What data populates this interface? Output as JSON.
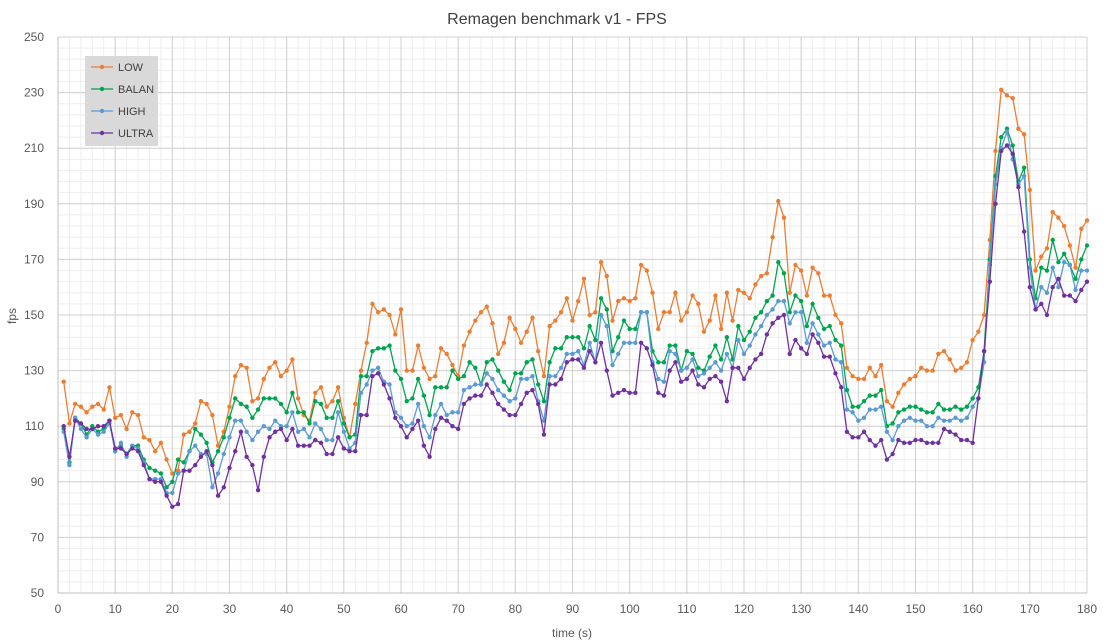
{
  "chart_data": {
    "type": "line",
    "title": "Remagen benchmark v1 - FPS",
    "xlabel": "time (s)",
    "ylabel": "fps",
    "xlim": [
      0,
      180
    ],
    "ylim": [
      50,
      250
    ],
    "x_ticks": [
      0,
      10,
      20,
      30,
      40,
      50,
      60,
      70,
      80,
      90,
      100,
      110,
      120,
      130,
      140,
      150,
      160,
      170,
      180
    ],
    "y_ticks": [
      50,
      70,
      90,
      110,
      130,
      150,
      170,
      190,
      210,
      230,
      250
    ],
    "x_minor_step": 2,
    "y_minor_step": 4,
    "grid": true,
    "legend_position": "top-left",
    "series": [
      {
        "name": "LOW",
        "color": "#ED7D31",
        "values": [
          126,
          111,
          118,
          117,
          115,
          117,
          118,
          116,
          124,
          113,
          114,
          109,
          115,
          114,
          106,
          105,
          101,
          104,
          98,
          93,
          94,
          107,
          108,
          111,
          119,
          118,
          114,
          103,
          108,
          117,
          128,
          132,
          131,
          119,
          120,
          127,
          131,
          133,
          128,
          130,
          134,
          120,
          114,
          112,
          122,
          124,
          117,
          119,
          124,
          113,
          106,
          118,
          130,
          140,
          154,
          151,
          152,
          150,
          143,
          152,
          130,
          130,
          139,
          131,
          127,
          128,
          138,
          136,
          132,
          128,
          139,
          144,
          148,
          151,
          153,
          147,
          136,
          140,
          149,
          145,
          140,
          144,
          149,
          137,
          128,
          146,
          148,
          151,
          156,
          148,
          155,
          163,
          150,
          151,
          169,
          164,
          148,
          155,
          156,
          155,
          156,
          168,
          166,
          158,
          145,
          151,
          151,
          158,
          148,
          151,
          157,
          154,
          144,
          148,
          157,
          145,
          158,
          148,
          159,
          158,
          156,
          161,
          164,
          165,
          178,
          191,
          185,
          158,
          168,
          166,
          157,
          167,
          165,
          157,
          157,
          150,
          147,
          131,
          128,
          127,
          127,
          131,
          128,
          132,
          119,
          117,
          122,
          125,
          127,
          128,
          131,
          130,
          130,
          136,
          137,
          134,
          130,
          131,
          133,
          141,
          144,
          150,
          177,
          209,
          231,
          229,
          228,
          217,
          215,
          195,
          166,
          171,
          174,
          187,
          185,
          182,
          175,
          167,
          181,
          184
        ]
      },
      {
        "name": "BALAN",
        "color": "#00A550",
        "values": [
          109,
          97,
          113,
          111,
          107,
          110,
          108,
          109,
          112,
          101,
          103,
          100,
          103,
          103,
          98,
          95,
          94,
          93,
          88,
          90,
          98,
          97,
          101,
          109,
          107,
          104,
          97,
          101,
          106,
          113,
          120,
          118,
          117,
          113,
          116,
          120,
          120,
          120,
          118,
          115,
          122,
          115,
          115,
          111,
          119,
          118,
          113,
          113,
          119,
          111,
          106,
          107,
          128,
          128,
          137,
          138,
          138,
          139,
          130,
          127,
          119,
          120,
          127,
          121,
          114,
          124,
          124,
          124,
          130,
          127,
          128,
          133,
          131,
          125,
          133,
          134,
          130,
          126,
          123,
          129,
          129,
          133,
          134,
          125,
          119,
          133,
          138,
          138,
          142,
          142,
          142,
          138,
          146,
          141,
          156,
          152,
          137,
          142,
          148,
          145,
          145,
          151,
          151,
          137,
          133,
          133,
          139,
          139,
          130,
          137,
          136,
          131,
          130,
          135,
          139,
          134,
          142,
          134,
          146,
          141,
          144,
          149,
          151,
          155,
          157,
          169,
          165,
          151,
          157,
          155,
          146,
          154,
          149,
          145,
          146,
          141,
          139,
          123,
          117,
          117,
          119,
          121,
          121,
          123,
          110,
          111,
          115,
          116,
          117,
          117,
          116,
          115,
          115,
          118,
          116,
          116,
          117,
          116,
          117,
          120,
          124,
          137,
          170,
          200,
          214,
          217,
          211,
          198,
          203,
          170,
          156,
          167,
          166,
          177,
          169,
          172,
          168,
          163,
          170,
          175
        ]
      },
      {
        "name": "HIGH",
        "color": "#5B9BD5",
        "values": [
          108,
          96,
          113,
          109,
          106,
          109,
          107,
          108,
          111,
          101,
          104,
          99,
          103,
          102,
          97,
          91,
          91,
          91,
          86,
          86,
          93,
          94,
          101,
          103,
          100,
          100,
          88,
          93,
          100,
          106,
          112,
          112,
          108,
          105,
          108,
          110,
          109,
          112,
          110,
          110,
          115,
          108,
          109,
          106,
          111,
          109,
          105,
          105,
          115,
          108,
          102,
          104,
          122,
          125,
          130,
          131,
          126,
          125,
          115,
          113,
          110,
          111,
          118,
          110,
          106,
          114,
          118,
          114,
          115,
          115,
          123,
          124,
          125,
          125,
          129,
          127,
          123,
          121,
          119,
          120,
          127,
          127,
          128,
          119,
          112,
          128,
          128,
          131,
          136,
          136,
          137,
          132,
          140,
          133,
          150,
          146,
          132,
          136,
          140,
          140,
          140,
          151,
          151,
          133,
          127,
          126,
          137,
          136,
          130,
          131,
          134,
          128,
          129,
          131,
          133,
          130,
          136,
          131,
          141,
          136,
          139,
          143,
          146,
          150,
          152,
          155,
          155,
          147,
          151,
          151,
          140,
          147,
          143,
          139,
          140,
          134,
          133,
          116,
          115,
          112,
          113,
          116,
          116,
          117,
          108,
          105,
          110,
          112,
          113,
          112,
          112,
          110,
          110,
          113,
          112,
          112,
          113,
          112,
          113,
          117,
          120,
          133,
          168,
          197,
          210,
          216,
          206,
          197,
          200,
          167,
          152,
          160,
          158,
          167,
          160,
          169,
          168,
          159,
          166,
          166
        ]
      },
      {
        "name": "ULTRA",
        "color": "#7030A0",
        "values": [
          110,
          99,
          112,
          111,
          109,
          109,
          110,
          110,
          112,
          102,
          102,
          100,
          102,
          101,
          96,
          91,
          90,
          90,
          85,
          81,
          82,
          94,
          94,
          96,
          99,
          101,
          96,
          85,
          88,
          95,
          101,
          108,
          99,
          96,
          87,
          99,
          106,
          108,
          109,
          105,
          109,
          103,
          103,
          103,
          105,
          104,
          100,
          100,
          106,
          102,
          101,
          101,
          114,
          114,
          128,
          129,
          125,
          120,
          113,
          110,
          106,
          109,
          112,
          103,
          99,
          109,
          113,
          112,
          110,
          109,
          118,
          120,
          121,
          121,
          125,
          122,
          118,
          116,
          114,
          114,
          118,
          122,
          123,
          118,
          107,
          125,
          125,
          127,
          133,
          134,
          134,
          131,
          137,
          133,
          140,
          130,
          121,
          122,
          123,
          122,
          122,
          140,
          138,
          132,
          122,
          121,
          130,
          133,
          126,
          127,
          130,
          125,
          124,
          127,
          128,
          126,
          119,
          131,
          131,
          127,
          131,
          134,
          136,
          143,
          147,
          149,
          150,
          136,
          141,
          138,
          136,
          143,
          140,
          135,
          135,
          129,
          124,
          108,
          106,
          106,
          108,
          105,
          103,
          105,
          98,
          100,
          105,
          104,
          104,
          105,
          105,
          104,
          104,
          104,
          109,
          108,
          107,
          105,
          105,
          104,
          120,
          137,
          162,
          190,
          209,
          211,
          208,
          196,
          180,
          160,
          152,
          154,
          150,
          160,
          163,
          157,
          157,
          155,
          159,
          162
        ]
      }
    ]
  }
}
